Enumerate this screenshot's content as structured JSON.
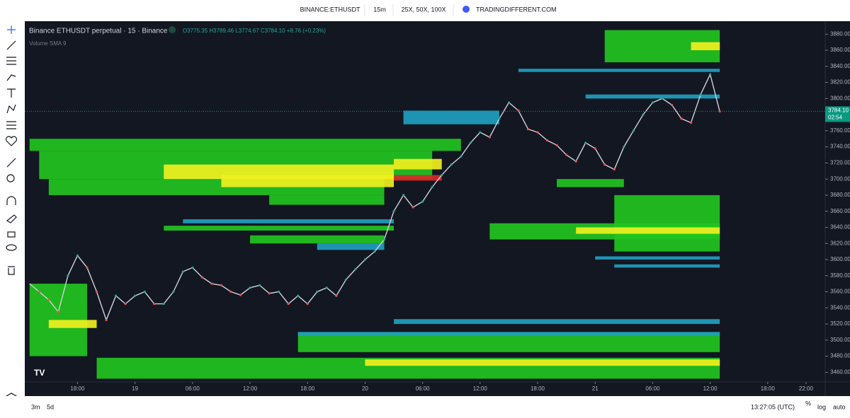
{
  "header": {
    "symbol": "BINANCE:ETHUSDT",
    "interval": "15m",
    "leverage": "25X, 50X, 100X",
    "site": "TRADINGDIFFERENT.COM"
  },
  "legend": {
    "title": "Binance ETHUSDT perpetual · 15 · Binance",
    "ohlc": "O3775.35 H3789.46 L3774.67 C3784.10 +8.76 (+0.23%)",
    "indicator": "Volume SMA 9"
  },
  "footer": {
    "ranges": [
      "3m",
      "5d"
    ],
    "clock": "13:27:05 (UTC)",
    "options": [
      "%",
      "log",
      "auto"
    ]
  },
  "chart_data": {
    "type": "line",
    "color": "#d0d3da",
    "x": [
      -5,
      -4,
      -3,
      -2,
      -1,
      0,
      1,
      2,
      3,
      4,
      5,
      6,
      7,
      8,
      9,
      10,
      11,
      12,
      13,
      14,
      15,
      16,
      17,
      18,
      19,
      20,
      21,
      22,
      23,
      24,
      25,
      26,
      27,
      28,
      29,
      30,
      31,
      32,
      33,
      34,
      35,
      36,
      37,
      38,
      39,
      40,
      41,
      42,
      43,
      44,
      45,
      46,
      47,
      48,
      49,
      50,
      51,
      52,
      53,
      54,
      55,
      56,
      57,
      58,
      59,
      60,
      61,
      62,
      63,
      64,
      65,
      66,
      67
    ],
    "values": [
      3570,
      3560,
      3550,
      3535,
      3580,
      3605,
      3590,
      3560,
      3525,
      3555,
      3545,
      3555,
      3560,
      3545,
      3545,
      3560,
      3585,
      3590,
      3578,
      3570,
      3568,
      3560,
      3556,
      3565,
      3568,
      3558,
      3560,
      3545,
      3555,
      3545,
      3560,
      3565,
      3555,
      3575,
      3588,
      3600,
      3610,
      3625,
      3660,
      3680,
      3665,
      3672,
      3690,
      3705,
      3718,
      3728,
      3745,
      3758,
      3752,
      3775,
      3795,
      3785,
      3762,
      3758,
      3748,
      3742,
      3730,
      3722,
      3745,
      3738,
      3718,
      3712,
      3740,
      3760,
      3780,
      3795,
      3800,
      3792,
      3775,
      3770,
      3805,
      3830,
      3784.1
    ],
    "levels": [
      {
        "low": 3735,
        "high": 3750,
        "from": -5,
        "to": 40,
        "color": "#22c41f"
      },
      {
        "low": 3700,
        "high": 3735,
        "from": -4,
        "to": 37,
        "color": "#22c41f"
      },
      {
        "low": 3680,
        "high": 3700,
        "from": -3,
        "to": 32,
        "color": "#22c41f"
      },
      {
        "low": 3668,
        "high": 3680,
        "from": 20,
        "to": 32,
        "color": "#22c41f"
      },
      {
        "low": 3700,
        "high": 3718,
        "from": 9,
        "to": 33,
        "color": "#f0f020"
      },
      {
        "low": 3690,
        "high": 3705,
        "from": 15,
        "to": 33,
        "color": "#f0f020"
      },
      {
        "low": 3712,
        "high": 3725,
        "from": 33,
        "to": 38,
        "color": "#f0f020"
      },
      {
        "low": 3698,
        "high": 3705,
        "from": 33,
        "to": 38,
        "color": "#d42a2a"
      },
      {
        "low": 3645,
        "high": 3650,
        "from": 11,
        "to": 33,
        "color": "#1f9fc0"
      },
      {
        "low": 3636,
        "high": 3642,
        "from": 9,
        "to": 33,
        "color": "#22c41f"
      },
      {
        "low": 3620,
        "high": 3630,
        "from": 18,
        "to": 32,
        "color": "#22c41f"
      },
      {
        "low": 3612,
        "high": 3620,
        "from": 25,
        "to": 32,
        "color": "#1f9fc0"
      },
      {
        "low": 3768,
        "high": 3785,
        "from": 34,
        "to": 44,
        "color": "#1f9fc0"
      },
      {
        "low": 3845,
        "high": 3885,
        "from": 55,
        "to": 67,
        "color": "#22c41f"
      },
      {
        "low": 3860,
        "high": 3870,
        "from": 64,
        "to": 67,
        "color": "#f0f020"
      },
      {
        "low": 3833,
        "high": 3837,
        "from": 46,
        "to": 67,
        "color": "#1f9fc0"
      },
      {
        "low": 3800,
        "high": 3805,
        "from": 53,
        "to": 67,
        "color": "#1f9fc0"
      },
      {
        "low": 3610,
        "high": 3680,
        "from": 56,
        "to": 67,
        "color": "#22c41f"
      },
      {
        "low": 3625,
        "high": 3645,
        "from": 43,
        "to": 67,
        "color": "#22c41f"
      },
      {
        "low": 3632,
        "high": 3640,
        "from": 52,
        "to": 67,
        "color": "#f0f020"
      },
      {
        "low": 3600,
        "high": 3604,
        "from": 54,
        "to": 67,
        "color": "#1f9fc0"
      },
      {
        "low": 3590,
        "high": 3594,
        "from": 56,
        "to": 67,
        "color": "#1f9fc0"
      },
      {
        "low": 3690,
        "high": 3700,
        "from": 50,
        "to": 57,
        "color": "#22c41f"
      },
      {
        "low": 3520,
        "high": 3526,
        "from": 33,
        "to": 67,
        "color": "#1f9fc0"
      },
      {
        "low": 3485,
        "high": 3510,
        "from": 23,
        "to": 67,
        "color": "#22c41f"
      },
      {
        "low": 3505,
        "high": 3510,
        "from": 23,
        "to": 67,
        "color": "#1f9fc0"
      },
      {
        "low": 3452,
        "high": 3478,
        "from": 2,
        "to": 67,
        "color": "#22c41f"
      },
      {
        "low": 3468,
        "high": 3476,
        "from": 30,
        "to": 67,
        "color": "#f0f020"
      },
      {
        "low": 3480,
        "high": 3570,
        "from": -5,
        "to": 1,
        "color": "#22c41f"
      },
      {
        "low": 3515,
        "high": 3525,
        "from": -3,
        "to": 2,
        "color": "#f0f020"
      }
    ],
    "xlim": [
      -5.5,
      78
    ],
    "xticks": [
      {
        "value": 0,
        "label": "18:00"
      },
      {
        "value": 6,
        "label": "19"
      },
      {
        "value": 12,
        "label": "06:00"
      },
      {
        "value": 18,
        "label": "12:00"
      },
      {
        "value": 24,
        "label": "18:00"
      },
      {
        "value": 30,
        "label": "20"
      },
      {
        "value": 36,
        "label": "06:00"
      },
      {
        "value": 42,
        "label": "12:00"
      },
      {
        "value": 48,
        "label": "18:00"
      },
      {
        "value": 54,
        "label": "21"
      },
      {
        "value": 60,
        "label": "06:00"
      },
      {
        "value": 66,
        "label": "12:00"
      },
      {
        "value": 72,
        "label": "18:00"
      },
      {
        "value": 76,
        "label": "22:00"
      }
    ],
    "ylim": [
      3448,
      3889
    ],
    "yticks": [
      {
        "value": 3460,
        "label": "3460.00"
      },
      {
        "value": 3480,
        "label": "3480.00"
      },
      {
        "value": 3500,
        "label": "3500.00"
      },
      {
        "value": 3520,
        "label": "3520.00"
      },
      {
        "value": 3540,
        "label": "3540.00"
      },
      {
        "value": 3560,
        "label": "3560.00"
      },
      {
        "value": 3580,
        "label": "3580.00"
      },
      {
        "value": 3600,
        "label": "3600.00"
      },
      {
        "value": 3620,
        "label": "3620.00"
      },
      {
        "value": 3640,
        "label": "3640.00"
      },
      {
        "value": 3660,
        "label": "3660.00"
      },
      {
        "value": 3680,
        "label": "3680.00"
      },
      {
        "value": 3700,
        "label": "3700.00"
      },
      {
        "value": 3720,
        "label": "3720.00"
      },
      {
        "value": 3740,
        "label": "3740.00"
      },
      {
        "value": 3760,
        "label": "3760.00"
      },
      {
        "value": 3780,
        "label": "3780.00"
      },
      {
        "value": 3800,
        "label": "3800.00"
      },
      {
        "value": 3820,
        "label": "3820.00"
      },
      {
        "value": 3840,
        "label": "3840.00"
      },
      {
        "value": 3860,
        "label": "3860.00"
      },
      {
        "value": 3880,
        "label": "3880.00"
      }
    ],
    "last_price": {
      "value": 3784.1,
      "label": "3784.10",
      "countdown": "02:54",
      "color": "#089981"
    }
  }
}
